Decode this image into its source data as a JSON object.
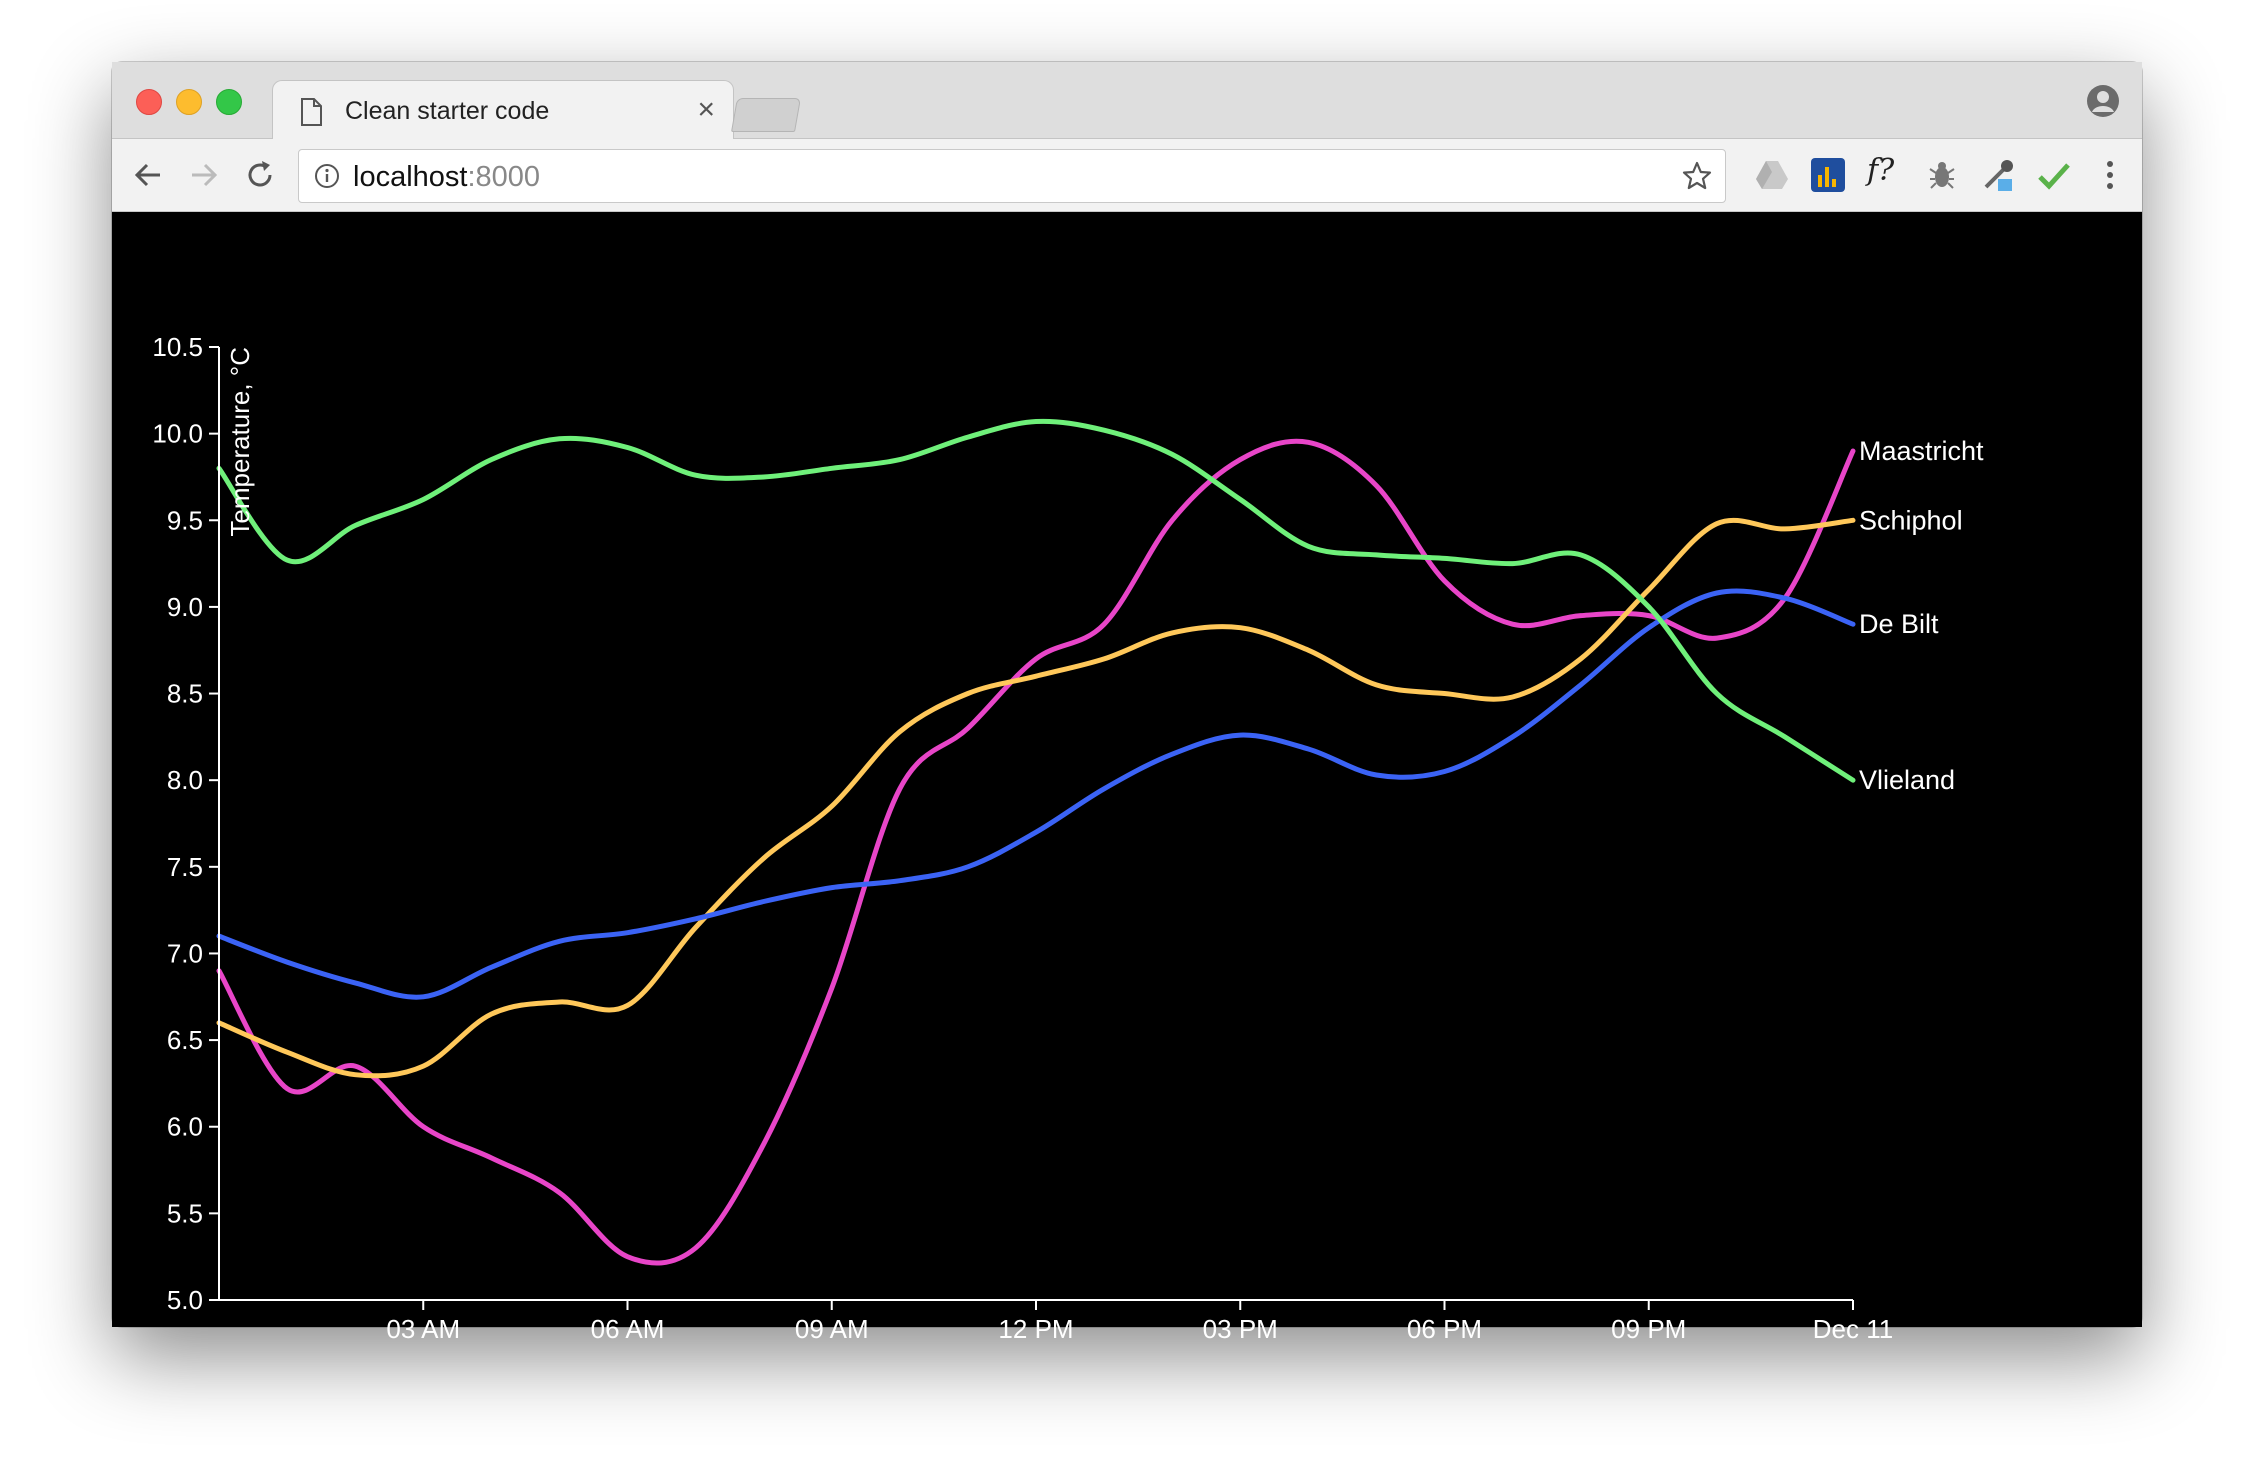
{
  "browser": {
    "tab_title": "Clean starter code",
    "tab_close": "×",
    "url_host": "localhost",
    "url_port": ":8000",
    "extension_fx_label": "f?"
  },
  "icons": {
    "tab": "document-icon",
    "close": "close-icon",
    "back": "arrow-left-icon",
    "forward": "arrow-right-icon",
    "reload": "reload-icon",
    "info": "info-icon",
    "bookmark": "star-icon",
    "profile": "profile-icon",
    "menu": "kebab-menu-icon"
  },
  "chart_data": {
    "type": "line",
    "title": "",
    "xlabel": "",
    "ylabel": "Temperature, °C",
    "x_unit": "hour of day (Dec 10 00:00 to Dec 11 00:00)",
    "xlim": [
      0,
      24
    ],
    "ylim": [
      5.0,
      10.5
    ],
    "y_ticks": [
      5.0,
      5.5,
      6.0,
      6.5,
      7.0,
      7.5,
      8.0,
      8.5,
      9.0,
      9.5,
      10.0,
      10.5
    ],
    "y_tick_labels": [
      "5.0",
      "5.5",
      "6.0",
      "6.5",
      "7.0",
      "7.5",
      "8.0",
      "8.5",
      "9.0",
      "9.5",
      "10.0",
      "10.5"
    ],
    "x_ticks": [
      3,
      6,
      9,
      12,
      15,
      18,
      21,
      24
    ],
    "x_tick_labels": [
      "03 AM",
      "06 AM",
      "09 AM",
      "12 PM",
      "03 PM",
      "06 PM",
      "09 PM",
      "Dec 11"
    ],
    "grid": false,
    "legend": "labels at line ends (right)",
    "x": [
      0,
      1,
      2,
      3,
      4,
      5,
      6,
      7,
      8,
      9,
      10,
      11,
      12,
      13,
      14,
      15,
      16,
      17,
      18,
      19,
      20,
      21,
      22,
      23,
      24
    ],
    "series": [
      {
        "name": "Maastricht",
        "color": "#e845c8",
        "values": [
          6.9,
          6.22,
          6.35,
          6.0,
          5.82,
          5.62,
          5.25,
          5.3,
          5.9,
          6.8,
          7.95,
          8.3,
          8.7,
          8.9,
          9.5,
          9.85,
          9.95,
          9.7,
          9.15,
          8.9,
          8.95,
          8.95,
          8.82,
          9.05,
          9.9
        ]
      },
      {
        "name": "Schiphol",
        "color": "#ffc85a",
        "values": [
          6.6,
          6.43,
          6.3,
          6.35,
          6.65,
          6.72,
          6.7,
          7.15,
          7.55,
          7.85,
          8.28,
          8.5,
          8.6,
          8.7,
          8.85,
          8.88,
          8.75,
          8.55,
          8.5,
          8.48,
          8.7,
          9.1,
          9.48,
          9.45,
          9.5
        ]
      },
      {
        "name": "De Bilt",
        "color": "#3b63f5",
        "values": [
          7.1,
          6.95,
          6.83,
          6.75,
          6.92,
          7.07,
          7.12,
          7.2,
          7.3,
          7.38,
          7.42,
          7.5,
          7.7,
          7.95,
          8.15,
          8.26,
          8.18,
          8.03,
          8.05,
          8.25,
          8.55,
          8.88,
          9.08,
          9.05,
          8.9
        ]
      },
      {
        "name": "Vlieland",
        "color": "#6ff07a",
        "values": [
          9.8,
          9.27,
          9.47,
          9.62,
          9.85,
          9.97,
          9.92,
          9.76,
          9.75,
          9.8,
          9.85,
          9.98,
          10.07,
          10.02,
          9.88,
          9.62,
          9.35,
          9.3,
          9.28,
          9.25,
          9.3,
          9.0,
          8.5,
          8.25,
          8.0
        ]
      }
    ]
  }
}
